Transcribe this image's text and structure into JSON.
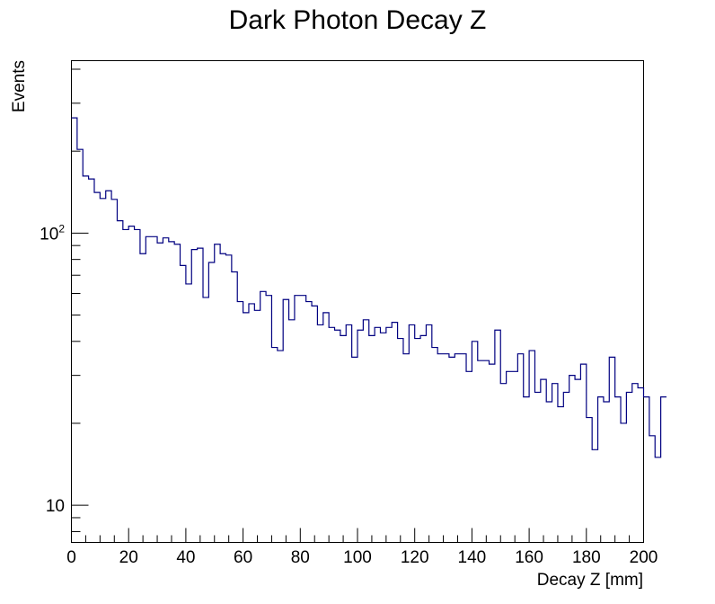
{
  "chart_data": {
    "type": "histogram",
    "title": "Dark Photon Decay Z",
    "xlabel": "Decay Z [mm]",
    "ylabel": "Events",
    "xlim": [
      0,
      200
    ],
    "ylim": [
      7.3,
      430
    ],
    "yscale": "log",
    "grid": false,
    "bin_width": 2,
    "line_color": "#000080",
    "x_tick_labels": [
      "0",
      "20",
      "40",
      "60",
      "80",
      "100",
      "120",
      "140",
      "160",
      "180",
      "200"
    ],
    "y_tick_labels": [
      {
        "base": "10",
        "exponent": "2",
        "value": 100
      },
      {
        "base": "10",
        "exponent": "",
        "value": 10
      }
    ],
    "values": [
      265,
      203,
      162,
      158,
      141,
      134,
      143,
      133,
      111,
      103,
      106,
      103,
      84,
      97,
      97,
      92,
      96,
      93,
      91,
      76,
      65,
      87,
      88,
      58,
      78,
      91,
      84,
      83,
      72,
      56,
      51,
      55,
      52,
      61,
      59,
      38,
      37,
      57,
      48,
      59,
      59,
      56,
      54,
      46,
      51,
      45,
      44,
      42,
      46,
      35,
      44,
      48,
      42,
      45,
      43,
      45,
      47,
      41,
      36,
      46,
      41,
      42,
      46,
      38,
      36,
      36,
      35,
      36,
      36,
      31,
      40,
      34,
      34,
      33,
      44,
      28,
      31,
      31,
      36,
      25,
      37,
      26,
      29,
      24,
      28,
      23,
      26,
      30,
      29,
      33,
      21,
      16,
      25,
      24,
      35,
      25,
      20,
      26,
      28,
      27,
      25,
      18,
      15,
      25
    ]
  }
}
